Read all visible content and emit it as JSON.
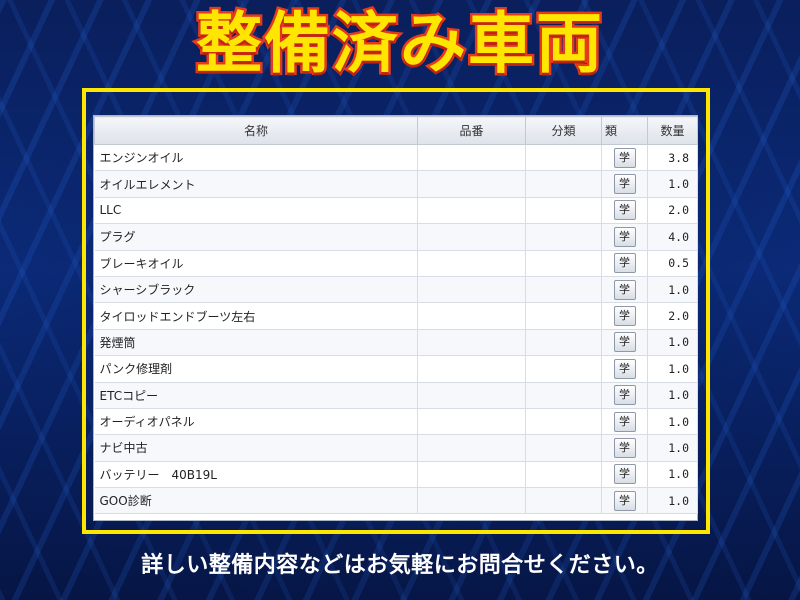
{
  "headline": "整備済み車両",
  "table": {
    "headers": {
      "name": "名称",
      "part_no": "品番",
      "category": "分類",
      "type": "類",
      "quantity": "数量"
    },
    "rows": [
      {
        "name": "エンジンオイル",
        "part_no": "",
        "category": "",
        "button": "学",
        "quantity": "3.8"
      },
      {
        "name": "オイルエレメント",
        "part_no": "",
        "category": "",
        "button": "学",
        "quantity": "1.0"
      },
      {
        "name": "LLC",
        "part_no": "",
        "category": "",
        "button": "学",
        "quantity": "2.0"
      },
      {
        "name": "プラグ",
        "part_no": "",
        "category": "",
        "button": "学",
        "quantity": "4.0"
      },
      {
        "name": "ブレーキオイル",
        "part_no": "",
        "category": "",
        "button": "学",
        "quantity": "0.5"
      },
      {
        "name": "シャーシブラック",
        "part_no": "",
        "category": "",
        "button": "学",
        "quantity": "1.0"
      },
      {
        "name": "タイロッドエンドブーツ左右",
        "part_no": "",
        "category": "",
        "button": "学",
        "quantity": "2.0"
      },
      {
        "name": "発煙筒",
        "part_no": "",
        "category": "",
        "button": "学",
        "quantity": "1.0"
      },
      {
        "name": "パンク修理剤",
        "part_no": "",
        "category": "",
        "button": "学",
        "quantity": "1.0"
      },
      {
        "name": "ETCコピー",
        "part_no": "",
        "category": "",
        "button": "学",
        "quantity": "1.0"
      },
      {
        "name": "オーディオパネル",
        "part_no": "",
        "category": "",
        "button": "学",
        "quantity": "1.0"
      },
      {
        "name": "ナビ中古",
        "part_no": "",
        "category": "",
        "button": "学",
        "quantity": "1.0"
      },
      {
        "name": "バッテリー　40B19L",
        "part_no": "",
        "category": "",
        "button": "学",
        "quantity": "1.0"
      },
      {
        "name": "GOO診断",
        "part_no": "",
        "category": "",
        "button": "学",
        "quantity": "1.0"
      }
    ]
  },
  "footer": "詳しい整備内容などはお気軽にお問合せください。",
  "colors": {
    "headline_fill": "#ffe600",
    "headline_stroke": "#e53a1f",
    "frame": "#ffe600",
    "background": "#0b2a78"
  }
}
